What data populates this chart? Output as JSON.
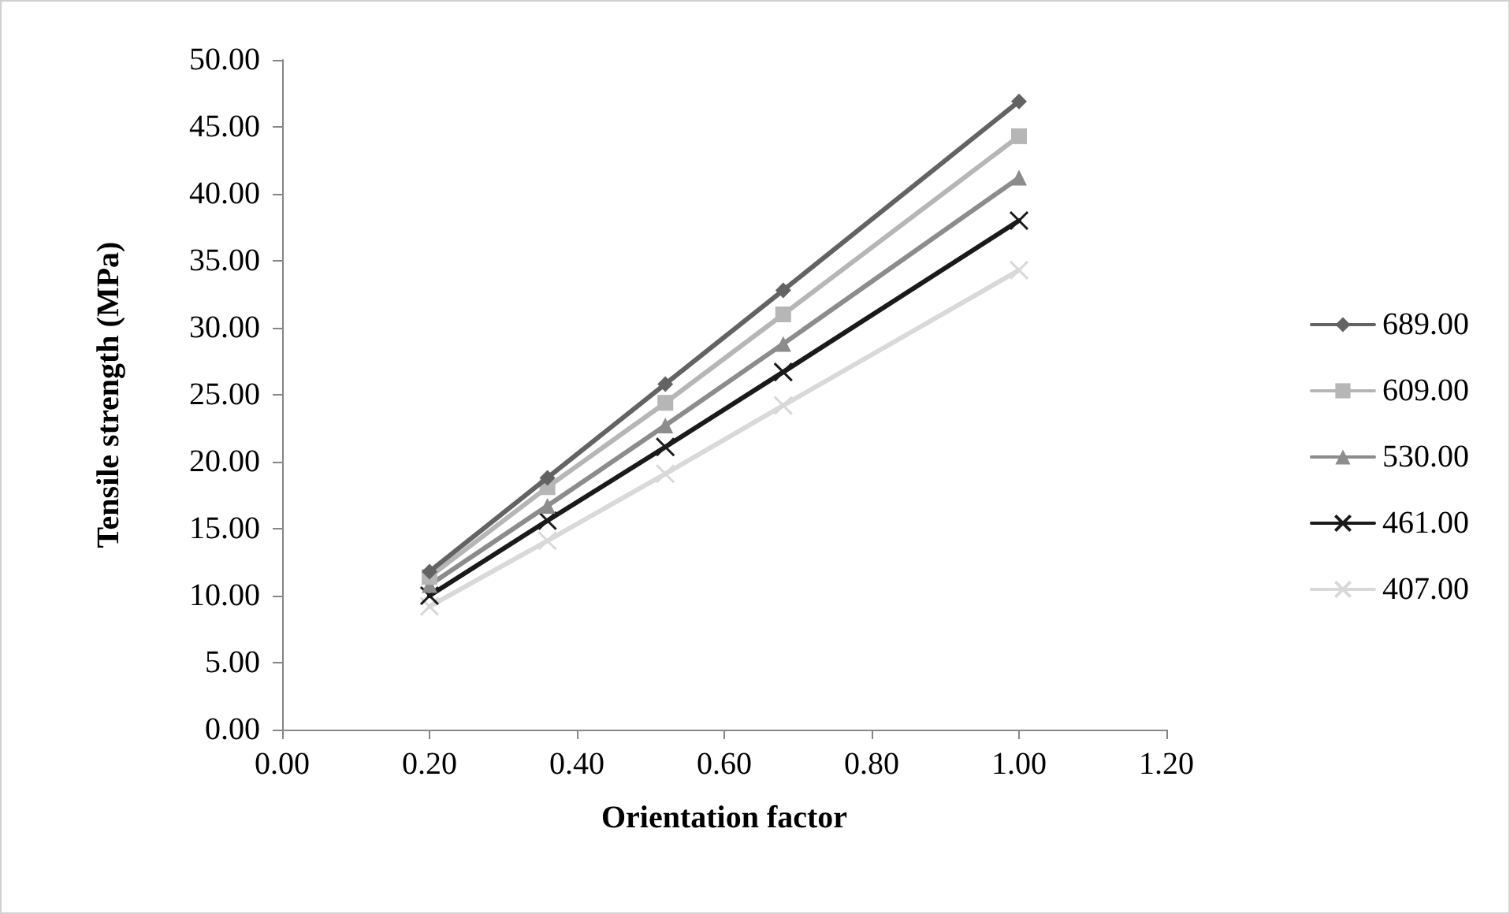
{
  "chart_data": {
    "type": "line",
    "xlabel": "Orientation factor",
    "ylabel": "Tensile strength (MPa)",
    "x": [
      0.2,
      0.36,
      0.52,
      0.68,
      1.0
    ],
    "series": [
      {
        "name": "689.00",
        "color": "#636363",
        "marker": "diamond",
        "values": [
          11.8,
          18.8,
          25.8,
          32.8,
          46.9
        ]
      },
      {
        "name": "609.00",
        "color": "#b6b6b6",
        "marker": "square",
        "values": [
          11.4,
          18.1,
          24.4,
          31.0,
          44.3
        ]
      },
      {
        "name": "530.00",
        "color": "#8c8c8c",
        "marker": "triangle",
        "values": [
          10.8,
          16.7,
          22.7,
          28.8,
          41.2
        ]
      },
      {
        "name": "461.00",
        "color": "#1a1a1a",
        "marker": "cross",
        "values": [
          10.0,
          15.6,
          21.1,
          26.7,
          38.0
        ]
      },
      {
        "name": "407.00",
        "color": "#d9d9d9",
        "marker": "cross",
        "values": [
          9.2,
          14.1,
          19.1,
          24.2,
          34.3
        ]
      }
    ],
    "xlim": [
      0,
      1.2
    ],
    "xticks": [
      {
        "value": 0,
        "label": "0.00"
      },
      {
        "value": 0.2,
        "label": "0.20"
      },
      {
        "value": 0.4,
        "label": "0.40"
      },
      {
        "value": 0.6,
        "label": "0.60"
      },
      {
        "value": 0.8,
        "label": "0.80"
      },
      {
        "value": 1.0,
        "label": "1.00"
      },
      {
        "value": 1.2,
        "label": "1.20"
      }
    ],
    "ylim": [
      0,
      50
    ],
    "yticks": [
      {
        "value": 0,
        "label": "0.00"
      },
      {
        "value": 5,
        "label": "5.00"
      },
      {
        "value": 10,
        "label": "10.00"
      },
      {
        "value": 15,
        "label": "15.00"
      },
      {
        "value": 20,
        "label": "20.00"
      },
      {
        "value": 25,
        "label": "25.00"
      },
      {
        "value": 30,
        "label": "30.00"
      },
      {
        "value": 35,
        "label": "35.00"
      },
      {
        "value": 40,
        "label": "40.00"
      },
      {
        "value": 45,
        "label": "45.00"
      },
      {
        "value": 50,
        "label": "50.00"
      }
    ],
    "grid": false,
    "legend": "right",
    "line_style": "solid"
  }
}
